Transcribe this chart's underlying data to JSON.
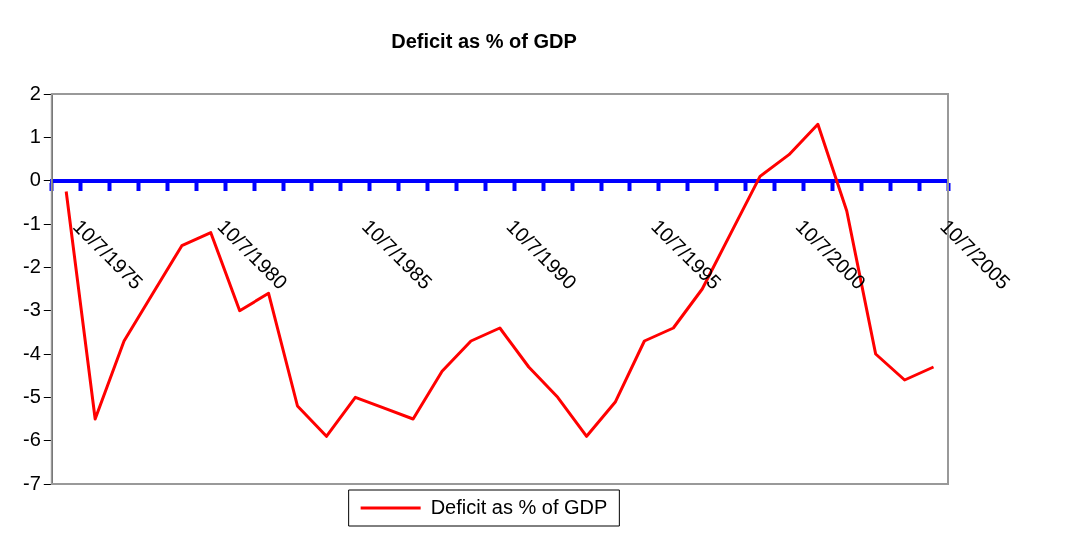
{
  "chart_data": {
    "type": "line",
    "title": "Deficit as % of GDP",
    "x": [
      "1975-04-07",
      "1976-04-07",
      "1977-04-07",
      "1978-04-07",
      "1979-04-07",
      "1980-04-07",
      "1981-04-07",
      "1982-04-07",
      "1983-04-07",
      "1984-04-07",
      "1985-04-07",
      "1986-04-07",
      "1987-04-07",
      "1988-04-07",
      "1989-04-07",
      "1990-04-07",
      "1991-04-07",
      "1992-04-07",
      "1993-04-07",
      "1994-04-07",
      "1995-04-07",
      "1996-04-07",
      "1997-04-07",
      "1998-04-07",
      "1999-04-07",
      "2000-04-07",
      "2001-04-07",
      "2002-04-07",
      "2003-04-07",
      "2004-04-07",
      "2005-04-07"
    ],
    "series": [
      {
        "name": "Deficit as % of GDP",
        "color": "#ff0000",
        "values": [
          -0.25,
          -5.5,
          -3.7,
          -2.6,
          -1.5,
          -1.2,
          -3.0,
          -2.6,
          -5.2,
          -5.9,
          -5.0,
          -5.25,
          -5.5,
          -4.4,
          -3.7,
          -3.4,
          -4.3,
          -5.0,
          -5.9,
          -5.1,
          -3.7,
          -3.4,
          -2.5,
          -1.2,
          0.1,
          0.6,
          1.3,
          -0.7,
          -4.0,
          -4.6,
          -4.3
        ]
      }
    ],
    "xlim": [
      "1974-10-07",
      "2005-10-07"
    ],
    "xticks": [
      {
        "value": "1974-10-07",
        "label": null
      },
      {
        "value": "1975-10-07",
        "label": "10/7/1975"
      },
      {
        "value": "1976-10-07",
        "label": null
      },
      {
        "value": "1977-10-07",
        "label": null
      },
      {
        "value": "1978-10-07",
        "label": null
      },
      {
        "value": "1979-10-07",
        "label": null
      },
      {
        "value": "1980-10-07",
        "label": "10/7/1980"
      },
      {
        "value": "1981-10-07",
        "label": null
      },
      {
        "value": "1982-10-07",
        "label": null
      },
      {
        "value": "1983-10-07",
        "label": null
      },
      {
        "value": "1984-10-07",
        "label": null
      },
      {
        "value": "1985-10-07",
        "label": "10/7/1985"
      },
      {
        "value": "1986-10-07",
        "label": null
      },
      {
        "value": "1987-10-07",
        "label": null
      },
      {
        "value": "1988-10-07",
        "label": null
      },
      {
        "value": "1989-10-07",
        "label": null
      },
      {
        "value": "1990-10-07",
        "label": "10/7/1990"
      },
      {
        "value": "1991-10-07",
        "label": null
      },
      {
        "value": "1992-10-07",
        "label": null
      },
      {
        "value": "1993-10-07",
        "label": null
      },
      {
        "value": "1994-10-07",
        "label": null
      },
      {
        "value": "1995-10-07",
        "label": "10/7/1995"
      },
      {
        "value": "1996-10-07",
        "label": null
      },
      {
        "value": "1997-10-07",
        "label": null
      },
      {
        "value": "1998-10-07",
        "label": null
      },
      {
        "value": "1999-10-07",
        "label": null
      },
      {
        "value": "2000-10-07",
        "label": "10/7/2000"
      },
      {
        "value": "2001-10-07",
        "label": null
      },
      {
        "value": "2002-10-07",
        "label": null
      },
      {
        "value": "2003-10-07",
        "label": null
      },
      {
        "value": "2004-10-07",
        "label": null
      },
      {
        "value": "2005-10-07",
        "label": "10/7/2005"
      }
    ],
    "ylim": [
      -7,
      2
    ],
    "yticks": [
      -7,
      -6,
      -5,
      -4,
      -3,
      -2,
      -1,
      0,
      1,
      2
    ],
    "grid": false,
    "legend": "bottom",
    "marker": "none",
    "line_style": "solid"
  }
}
